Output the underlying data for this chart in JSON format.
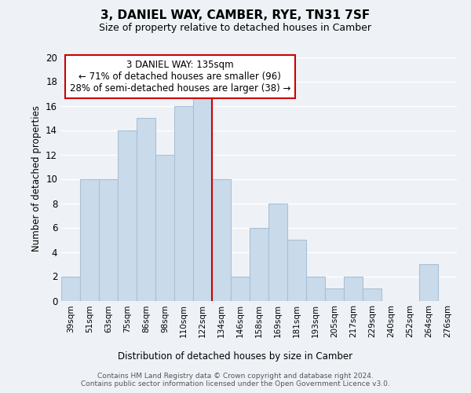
{
  "title": "3, DANIEL WAY, CAMBER, RYE, TN31 7SF",
  "subtitle": "Size of property relative to detached houses in Camber",
  "xlabel": "Distribution of detached houses by size in Camber",
  "ylabel": "Number of detached properties",
  "bar_labels": [
    "39sqm",
    "51sqm",
    "63sqm",
    "75sqm",
    "86sqm",
    "98sqm",
    "110sqm",
    "122sqm",
    "134sqm",
    "146sqm",
    "158sqm",
    "169sqm",
    "181sqm",
    "193sqm",
    "205sqm",
    "217sqm",
    "229sqm",
    "240sqm",
    "252sqm",
    "264sqm",
    "276sqm"
  ],
  "bar_values": [
    2,
    10,
    10,
    14,
    15,
    12,
    16,
    17,
    10,
    2,
    6,
    8,
    5,
    2,
    1,
    2,
    1,
    0,
    0,
    3,
    0
  ],
  "bar_color": "#c9daea",
  "bar_edge_color": "#a8c0d6",
  "vline_color": "#cc0000",
  "annotation_title": "3 DANIEL WAY: 135sqm",
  "annotation_line1": "← 71% of detached houses are smaller (96)",
  "annotation_line2": "28% of semi-detached houses are larger (38) →",
  "annotation_box_color": "#ffffff",
  "annotation_box_edge": "#cc0000",
  "ylim": [
    0,
    20
  ],
  "yticks": [
    0,
    2,
    4,
    6,
    8,
    10,
    12,
    14,
    16,
    18,
    20
  ],
  "footer1": "Contains HM Land Registry data © Crown copyright and database right 2024.",
  "footer2": "Contains public sector information licensed under the Open Government Licence v3.0.",
  "bg_color": "#eef2f7",
  "grid_color": "#ffffff"
}
